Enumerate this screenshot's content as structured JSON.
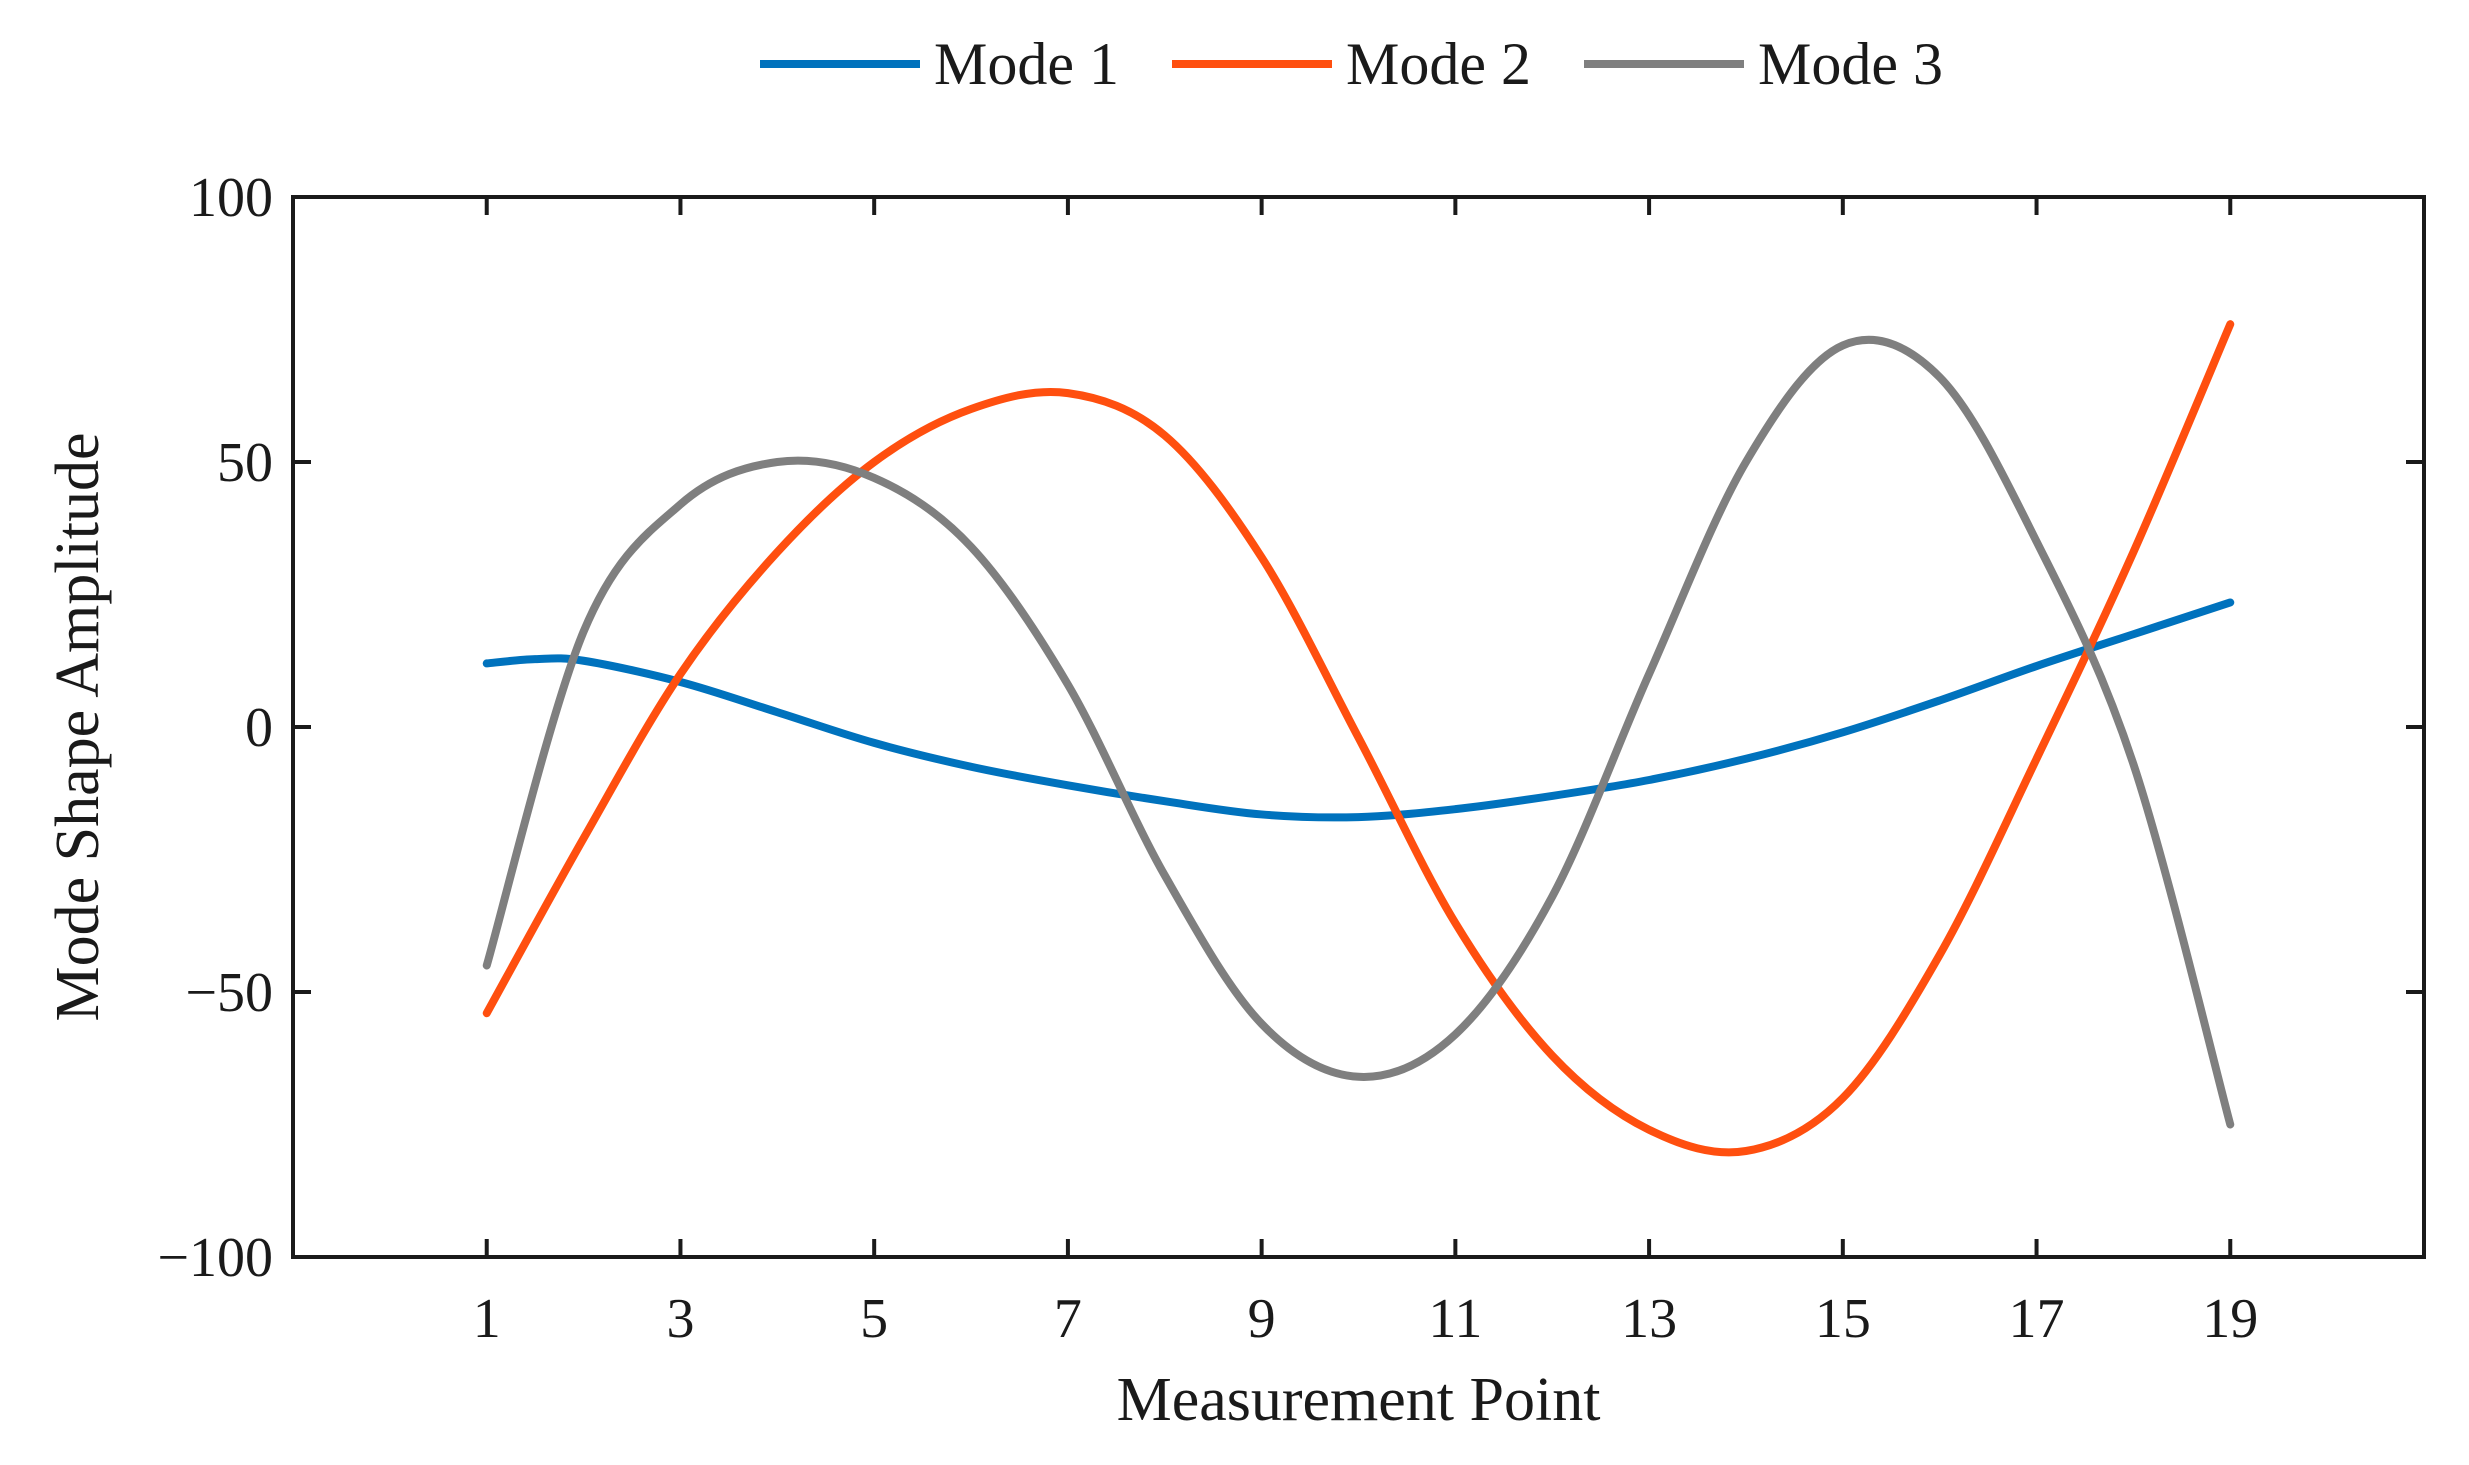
{
  "chart_data": {
    "type": "line",
    "title": "",
    "xlabel": "Measurement Point",
    "ylabel": "Mode Shape Amplitude",
    "xlim": [
      -1,
      21
    ],
    "ylim": [
      -100,
      100
    ],
    "xticks": [
      1,
      3,
      5,
      7,
      9,
      11,
      13,
      15,
      17,
      19
    ],
    "xtick_labels": [
      "1",
      "3",
      "5",
      "7",
      "9",
      "11",
      "13",
      "15",
      "17",
      "19"
    ],
    "yticks": [
      -100,
      -50,
      0,
      50,
      100
    ],
    "ytick_labels": [
      "−100",
      "−50",
      "0",
      "50",
      "100"
    ],
    "grid": false,
    "legend": {
      "position": "top-center",
      "orientation": "horizontal"
    },
    "series": [
      {
        "name": "Mode 1",
        "color": "#0072BD",
        "x": [
          1,
          1.5,
          2,
          3,
          4,
          5,
          6,
          7,
          8,
          9,
          10,
          11,
          12,
          13,
          14,
          15,
          16,
          17,
          18,
          19
        ],
        "y": [
          12,
          12.8,
          12.5,
          8.5,
          2.8,
          -3,
          -7.5,
          -11,
          -14,
          -16.5,
          -17,
          -15.5,
          -13,
          -10,
          -6,
          -1,
          5,
          11.5,
          17.5,
          23.5
        ]
      },
      {
        "name": "Mode 2",
        "color": "#FF4F0F",
        "x": [
          1,
          2,
          3,
          4,
          5,
          6,
          7,
          8,
          9,
          10,
          11,
          12,
          13,
          14,
          15,
          16,
          17,
          18,
          19
        ],
        "y": [
          -54,
          -21,
          10,
          33,
          50,
          60,
          63,
          55,
          32,
          -2,
          -37,
          -62,
          -76,
          -80,
          -70,
          -43,
          -6,
          33,
          76
        ]
      },
      {
        "name": "Mode 3",
        "color": "#7F7F7F",
        "x": [
          1,
          2,
          3,
          4,
          5,
          6,
          7,
          8,
          9,
          10,
          11,
          12,
          13,
          14,
          15,
          16,
          17,
          18,
          19
        ],
        "y": [
          -45,
          18,
          42,
          50,
          47,
          34,
          8,
          -28,
          -56,
          -66,
          -58,
          -32,
          10,
          50,
          72,
          66,
          35,
          -7,
          -75
        ]
      }
    ]
  }
}
